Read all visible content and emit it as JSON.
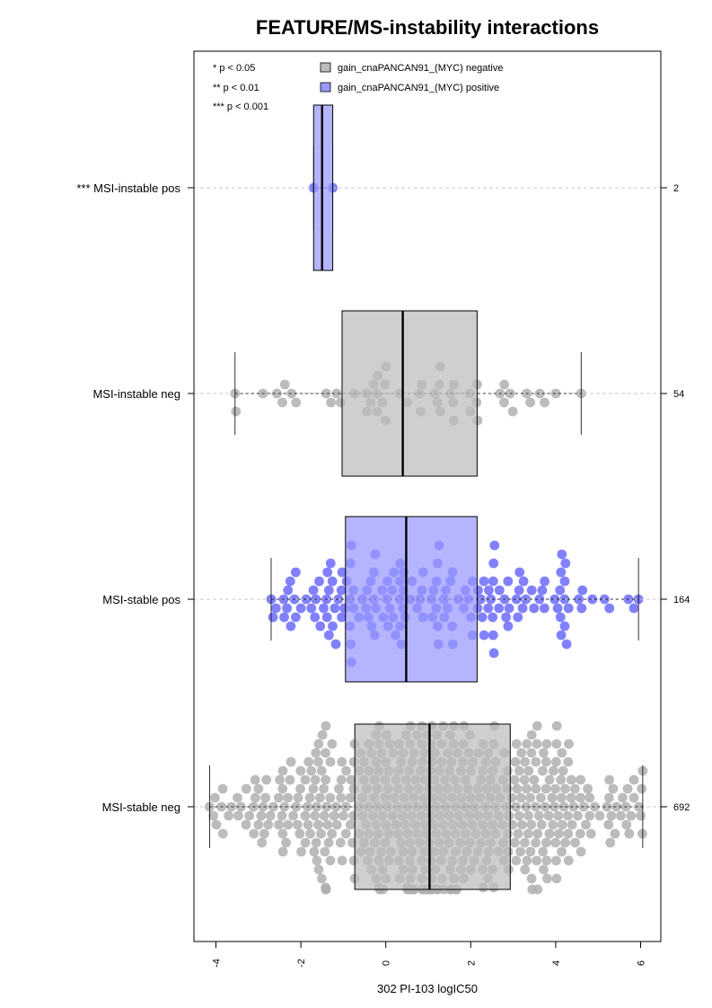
{
  "chart_data": {
    "type": "boxplot-beeswarm",
    "title": "FEATURE/MS-instability interactions",
    "xlabel": "302 PI-103 logIC50",
    "xlim": [
      -4.5,
      6.5
    ],
    "xticks": [
      -4,
      -2,
      0,
      2,
      4,
      6
    ],
    "significance_legend": [
      "* p < 0.05",
      "** p < 0.01",
      "*** p < 0.001"
    ],
    "legend": [
      {
        "label": "gain_cnaPANCAN91_(MYC) negative",
        "color": "#bdbdbd"
      },
      {
        "label": "gain_cnaPANCAN91_(MYC) positive",
        "color": "#9999ff"
      }
    ],
    "colors": {
      "negative_box": "#bdbdbd",
      "negative_point": "#b0b0b0",
      "positive_box": "#9999ff",
      "positive_point": "#6b6bff"
    },
    "groups": [
      {
        "label": "*** MSI-instable pos",
        "n": "2",
        "feature": "positive",
        "min": -1.7,
        "q1": -1.7,
        "median": -1.5,
        "q3": -1.25,
        "max": -1.25
      },
      {
        "label": "MSI-instable neg",
        "n": "54",
        "feature": "negative",
        "min": -3.55,
        "q1": -1.03,
        "median": 0.4,
        "q3": 2.15,
        "max": 4.6
      },
      {
        "label": "MSI-stable pos",
        "n": "164",
        "feature": "positive",
        "min": -2.7,
        "q1": -0.95,
        "median": 0.48,
        "q3": 2.15,
        "max": 5.95
      },
      {
        "label": "MSI-stable neg",
        "n": "692",
        "feature": "negative",
        "min": -4.15,
        "q1": -0.73,
        "median": 1.03,
        "q3": 2.93,
        "max": 6.05
      }
    ]
  }
}
